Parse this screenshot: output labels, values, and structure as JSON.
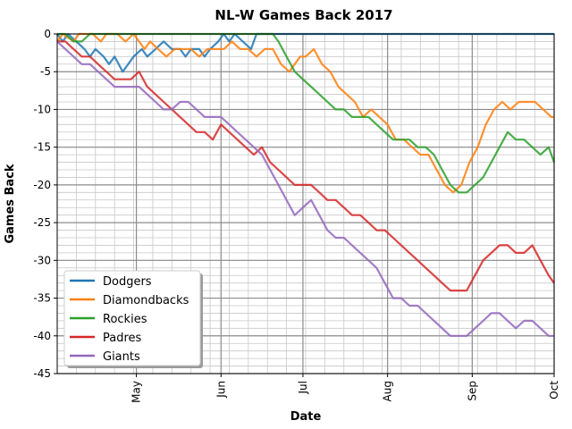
{
  "chart_data": {
    "type": "line",
    "title": "NL-W Games Back 2017",
    "xlabel": "Date",
    "ylabel": "Games Back",
    "ylim": [
      -45,
      0
    ],
    "yticks": [
      0,
      -5,
      -10,
      -15,
      -20,
      -25,
      -30,
      -35,
      -40,
      -45
    ],
    "xlim": [
      "2017-04-02",
      "2017-10-01"
    ],
    "xticks": [
      {
        "date": "2017-05-01",
        "label": "May"
      },
      {
        "date": "2017-06-01",
        "label": "Jun"
      },
      {
        "date": "2017-07-01",
        "label": "Jul"
      },
      {
        "date": "2017-08-01",
        "label": "Aug"
      },
      {
        "date": "2017-09-01",
        "label": "Sep"
      },
      {
        "date": "2017-10-01",
        "label": "Oct"
      }
    ],
    "grid": true,
    "legend": "lower-left",
    "series": [
      {
        "name": "Dodgers",
        "color": "#1f77b4",
        "points": [
          [
            "2017-04-02",
            0
          ],
          [
            "2017-04-04",
            -1
          ],
          [
            "2017-04-06",
            0
          ],
          [
            "2017-04-09",
            -1
          ],
          [
            "2017-04-12",
            -2
          ],
          [
            "2017-04-14",
            -3
          ],
          [
            "2017-04-16",
            -2
          ],
          [
            "2017-04-19",
            -3
          ],
          [
            "2017-04-21",
            -4
          ],
          [
            "2017-04-23",
            -3
          ],
          [
            "2017-04-26",
            -5
          ],
          [
            "2017-04-28",
            -4
          ],
          [
            "2017-04-30",
            -3
          ],
          [
            "2017-05-03",
            -2
          ],
          [
            "2017-05-05",
            -3
          ],
          [
            "2017-05-08",
            -2
          ],
          [
            "2017-05-11",
            -1
          ],
          [
            "2017-05-14",
            -2
          ],
          [
            "2017-05-17",
            -2
          ],
          [
            "2017-05-19",
            -3
          ],
          [
            "2017-05-21",
            -2
          ],
          [
            "2017-05-24",
            -2
          ],
          [
            "2017-05-26",
            -3
          ],
          [
            "2017-05-28",
            -2
          ],
          [
            "2017-05-31",
            -1
          ],
          [
            "2017-06-02",
            0
          ],
          [
            "2017-06-04",
            -1
          ],
          [
            "2017-06-06",
            0
          ],
          [
            "2017-06-09",
            -1
          ],
          [
            "2017-06-12",
            -2
          ],
          [
            "2017-06-14",
            0
          ],
          [
            "2017-06-16",
            0
          ],
          [
            "2017-06-20",
            0
          ],
          [
            "2017-07-01",
            0
          ],
          [
            "2017-08-01",
            0
          ],
          [
            "2017-09-01",
            0
          ],
          [
            "2017-10-01",
            0
          ]
        ]
      },
      {
        "name": "Diamondbacks",
        "color": "#ff7f0e",
        "points": [
          [
            "2017-04-02",
            -1
          ],
          [
            "2017-04-04",
            0
          ],
          [
            "2017-04-08",
            -1
          ],
          [
            "2017-04-10",
            0
          ],
          [
            "2017-04-15",
            0
          ],
          [
            "2017-04-18",
            -1
          ],
          [
            "2017-04-20",
            0
          ],
          [
            "2017-04-24",
            0
          ],
          [
            "2017-04-27",
            -1
          ],
          [
            "2017-04-30",
            0
          ],
          [
            "2017-05-02",
            -1
          ],
          [
            "2017-05-04",
            -2
          ],
          [
            "2017-05-06",
            -1
          ],
          [
            "2017-05-09",
            -2
          ],
          [
            "2017-05-12",
            -3
          ],
          [
            "2017-05-15",
            -2
          ],
          [
            "2017-05-18",
            -2
          ],
          [
            "2017-05-21",
            -2
          ],
          [
            "2017-05-24",
            -3
          ],
          [
            "2017-05-27",
            -2
          ],
          [
            "2017-05-30",
            -2
          ],
          [
            "2017-06-02",
            -2
          ],
          [
            "2017-06-05",
            -1
          ],
          [
            "2017-06-08",
            -2
          ],
          [
            "2017-06-11",
            -2
          ],
          [
            "2017-06-14",
            -3
          ],
          [
            "2017-06-17",
            -2
          ],
          [
            "2017-06-20",
            -2
          ],
          [
            "2017-06-23",
            -4
          ],
          [
            "2017-06-26",
            -5
          ],
          [
            "2017-06-28",
            -4
          ],
          [
            "2017-06-30",
            -3
          ],
          [
            "2017-07-02",
            -3
          ],
          [
            "2017-07-05",
            -2
          ],
          [
            "2017-07-08",
            -4
          ],
          [
            "2017-07-11",
            -5
          ],
          [
            "2017-07-14",
            -7
          ],
          [
            "2017-07-17",
            -8
          ],
          [
            "2017-07-20",
            -9
          ],
          [
            "2017-07-23",
            -11
          ],
          [
            "2017-07-26",
            -10
          ],
          [
            "2017-07-29",
            -11
          ],
          [
            "2017-08-01",
            -12
          ],
          [
            "2017-08-04",
            -14
          ],
          [
            "2017-08-07",
            -14
          ],
          [
            "2017-08-10",
            -15
          ],
          [
            "2017-08-13",
            -16
          ],
          [
            "2017-08-16",
            -16
          ],
          [
            "2017-08-19",
            -18
          ],
          [
            "2017-08-22",
            -20
          ],
          [
            "2017-08-25",
            -21
          ],
          [
            "2017-08-28",
            -20
          ],
          [
            "2017-08-31",
            -17
          ],
          [
            "2017-09-03",
            -15
          ],
          [
            "2017-09-06",
            -12
          ],
          [
            "2017-09-09",
            -10
          ],
          [
            "2017-09-12",
            -9
          ],
          [
            "2017-09-15",
            -10
          ],
          [
            "2017-09-18",
            -9
          ],
          [
            "2017-09-21",
            -9
          ],
          [
            "2017-09-24",
            -9
          ],
          [
            "2017-09-27",
            -10
          ],
          [
            "2017-09-30",
            -11
          ],
          [
            "2017-10-01",
            -11
          ]
        ]
      },
      {
        "name": "Rockies",
        "color": "#2ca02c",
        "points": [
          [
            "2017-04-02",
            0
          ],
          [
            "2017-04-05",
            0
          ],
          [
            "2017-04-08",
            -1
          ],
          [
            "2017-04-11",
            -1
          ],
          [
            "2017-04-14",
            0
          ],
          [
            "2017-05-01",
            0
          ],
          [
            "2017-06-01",
            0
          ],
          [
            "2017-06-20",
            0
          ],
          [
            "2017-06-22",
            -1
          ],
          [
            "2017-06-25",
            -3
          ],
          [
            "2017-06-28",
            -5
          ],
          [
            "2017-07-01",
            -6
          ],
          [
            "2017-07-04",
            -7
          ],
          [
            "2017-07-07",
            -8
          ],
          [
            "2017-07-10",
            -9
          ],
          [
            "2017-07-13",
            -10
          ],
          [
            "2017-07-16",
            -10
          ],
          [
            "2017-07-19",
            -11
          ],
          [
            "2017-07-22",
            -11
          ],
          [
            "2017-07-25",
            -11
          ],
          [
            "2017-07-28",
            -12
          ],
          [
            "2017-07-31",
            -13
          ],
          [
            "2017-08-03",
            -14
          ],
          [
            "2017-08-06",
            -14
          ],
          [
            "2017-08-09",
            -14
          ],
          [
            "2017-08-12",
            -15
          ],
          [
            "2017-08-15",
            -15
          ],
          [
            "2017-08-18",
            -16
          ],
          [
            "2017-08-21",
            -18
          ],
          [
            "2017-08-24",
            -20
          ],
          [
            "2017-08-27",
            -21
          ],
          [
            "2017-08-30",
            -21
          ],
          [
            "2017-09-02",
            -20
          ],
          [
            "2017-09-05",
            -19
          ],
          [
            "2017-09-08",
            -17
          ],
          [
            "2017-09-11",
            -15
          ],
          [
            "2017-09-14",
            -13
          ],
          [
            "2017-09-17",
            -14
          ],
          [
            "2017-09-20",
            -14
          ],
          [
            "2017-09-23",
            -15
          ],
          [
            "2017-09-26",
            -16
          ],
          [
            "2017-09-29",
            -15
          ],
          [
            "2017-10-01",
            -17
          ]
        ]
      },
      {
        "name": "Padres",
        "color": "#d62728",
        "points": [
          [
            "2017-04-02",
            -1
          ],
          [
            "2017-04-05",
            -1
          ],
          [
            "2017-04-08",
            -2
          ],
          [
            "2017-04-11",
            -3
          ],
          [
            "2017-04-14",
            -3
          ],
          [
            "2017-04-17",
            -4
          ],
          [
            "2017-04-20",
            -5
          ],
          [
            "2017-04-23",
            -6
          ],
          [
            "2017-04-26",
            -6
          ],
          [
            "2017-04-29",
            -6
          ],
          [
            "2017-05-02",
            -5
          ],
          [
            "2017-05-05",
            -7
          ],
          [
            "2017-05-08",
            -8
          ],
          [
            "2017-05-11",
            -9
          ],
          [
            "2017-05-14",
            -10
          ],
          [
            "2017-05-17",
            -11
          ],
          [
            "2017-05-20",
            -12
          ],
          [
            "2017-05-23",
            -13
          ],
          [
            "2017-05-26",
            -13
          ],
          [
            "2017-05-29",
            -14
          ],
          [
            "2017-06-01",
            -12
          ],
          [
            "2017-06-04",
            -13
          ],
          [
            "2017-06-07",
            -14
          ],
          [
            "2017-06-10",
            -15
          ],
          [
            "2017-06-13",
            -16
          ],
          [
            "2017-06-16",
            -15
          ],
          [
            "2017-06-19",
            -17
          ],
          [
            "2017-06-22",
            -18
          ],
          [
            "2017-06-25",
            -19
          ],
          [
            "2017-06-28",
            -20
          ],
          [
            "2017-07-01",
            -20
          ],
          [
            "2017-07-04",
            -20
          ],
          [
            "2017-07-07",
            -21
          ],
          [
            "2017-07-10",
            -22
          ],
          [
            "2017-07-13",
            -22
          ],
          [
            "2017-07-16",
            -23
          ],
          [
            "2017-07-19",
            -24
          ],
          [
            "2017-07-22",
            -24
          ],
          [
            "2017-07-25",
            -25
          ],
          [
            "2017-07-28",
            -26
          ],
          [
            "2017-07-31",
            -26
          ],
          [
            "2017-08-03",
            -27
          ],
          [
            "2017-08-06",
            -28
          ],
          [
            "2017-08-09",
            -29
          ],
          [
            "2017-08-12",
            -30
          ],
          [
            "2017-08-15",
            -31
          ],
          [
            "2017-08-18",
            -32
          ],
          [
            "2017-08-21",
            -33
          ],
          [
            "2017-08-24",
            -34
          ],
          [
            "2017-08-27",
            -34
          ],
          [
            "2017-08-30",
            -34
          ],
          [
            "2017-09-02",
            -32
          ],
          [
            "2017-09-05",
            -30
          ],
          [
            "2017-09-08",
            -29
          ],
          [
            "2017-09-11",
            -28
          ],
          [
            "2017-09-14",
            -28
          ],
          [
            "2017-09-17",
            -29
          ],
          [
            "2017-09-20",
            -29
          ],
          [
            "2017-09-23",
            -28
          ],
          [
            "2017-09-26",
            -30
          ],
          [
            "2017-09-29",
            -32
          ],
          [
            "2017-10-01",
            -33
          ]
        ]
      },
      {
        "name": "Giants",
        "color": "#9467bd",
        "points": [
          [
            "2017-04-02",
            -1
          ],
          [
            "2017-04-05",
            -2
          ],
          [
            "2017-04-08",
            -3
          ],
          [
            "2017-04-11",
            -4
          ],
          [
            "2017-04-14",
            -4
          ],
          [
            "2017-04-17",
            -5
          ],
          [
            "2017-04-20",
            -6
          ],
          [
            "2017-04-23",
            -7
          ],
          [
            "2017-04-26",
            -7
          ],
          [
            "2017-04-29",
            -7
          ],
          [
            "2017-05-02",
            -7
          ],
          [
            "2017-05-05",
            -8
          ],
          [
            "2017-05-08",
            -9
          ],
          [
            "2017-05-11",
            -10
          ],
          [
            "2017-05-14",
            -10
          ],
          [
            "2017-05-17",
            -9
          ],
          [
            "2017-05-20",
            -9
          ],
          [
            "2017-05-23",
            -10
          ],
          [
            "2017-05-26",
            -11
          ],
          [
            "2017-05-29",
            -11
          ],
          [
            "2017-06-01",
            -11
          ],
          [
            "2017-06-04",
            -12
          ],
          [
            "2017-06-07",
            -13
          ],
          [
            "2017-06-10",
            -14
          ],
          [
            "2017-06-13",
            -15
          ],
          [
            "2017-06-16",
            -16
          ],
          [
            "2017-06-19",
            -18
          ],
          [
            "2017-06-22",
            -20
          ],
          [
            "2017-06-25",
            -22
          ],
          [
            "2017-06-28",
            -24
          ],
          [
            "2017-07-01",
            -23
          ],
          [
            "2017-07-04",
            -22
          ],
          [
            "2017-07-07",
            -24
          ],
          [
            "2017-07-10",
            -26
          ],
          [
            "2017-07-13",
            -27
          ],
          [
            "2017-07-16",
            -27
          ],
          [
            "2017-07-19",
            -28
          ],
          [
            "2017-07-22",
            -29
          ],
          [
            "2017-07-25",
            -30
          ],
          [
            "2017-07-28",
            -31
          ],
          [
            "2017-07-31",
            -33
          ],
          [
            "2017-08-03",
            -35
          ],
          [
            "2017-08-06",
            -35
          ],
          [
            "2017-08-09",
            -36
          ],
          [
            "2017-08-12",
            -36
          ],
          [
            "2017-08-15",
            -37
          ],
          [
            "2017-08-18",
            -38
          ],
          [
            "2017-08-21",
            -39
          ],
          [
            "2017-08-24",
            -40
          ],
          [
            "2017-08-27",
            -40
          ],
          [
            "2017-08-30",
            -40
          ],
          [
            "2017-09-02",
            -39
          ],
          [
            "2017-09-05",
            -38
          ],
          [
            "2017-09-08",
            -37
          ],
          [
            "2017-09-11",
            -37
          ],
          [
            "2017-09-14",
            -38
          ],
          [
            "2017-09-17",
            -39
          ],
          [
            "2017-09-20",
            -38
          ],
          [
            "2017-09-23",
            -38
          ],
          [
            "2017-09-26",
            -39
          ],
          [
            "2017-09-29",
            -40
          ],
          [
            "2017-10-01",
            -40
          ]
        ]
      }
    ]
  }
}
